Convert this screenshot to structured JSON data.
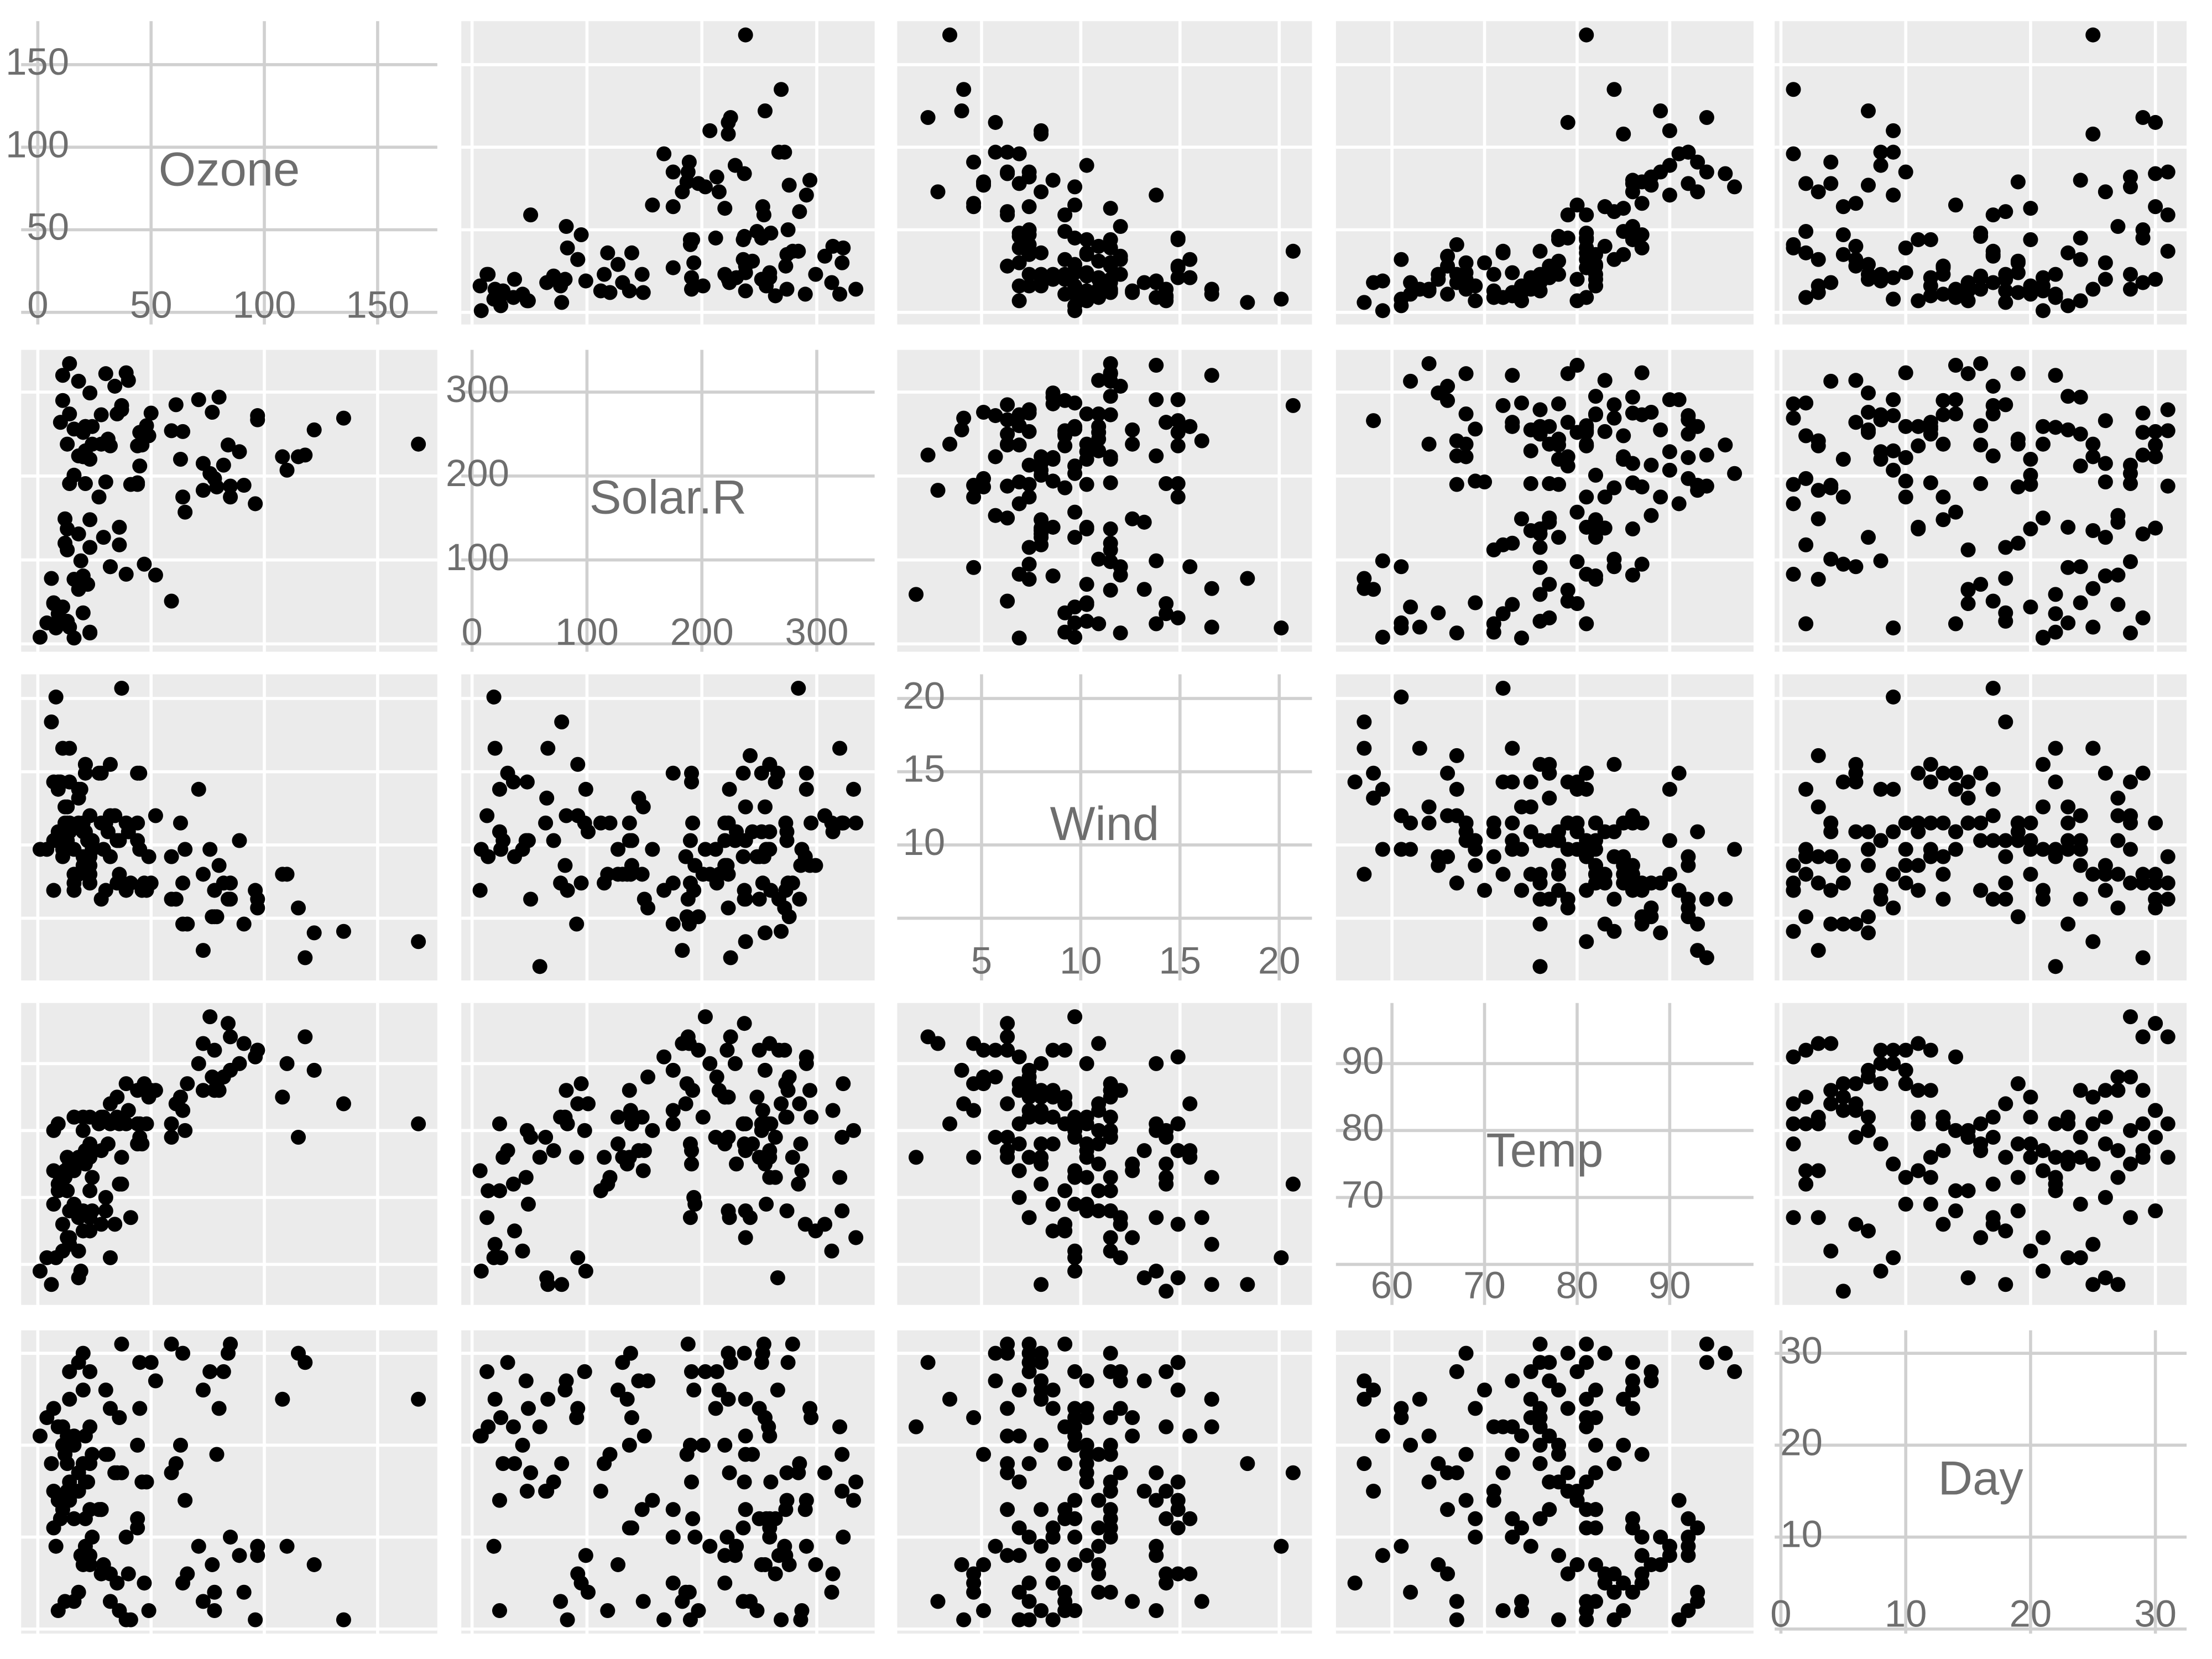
{
  "chart_data": {
    "type": "scatter-matrix",
    "color": "#000000",
    "variables": [
      {
        "name": "Ozone",
        "lim": [
          -7.35,
          176.35
        ],
        "ticks": [
          0,
          50,
          100,
          150
        ],
        "values": [
          41,
          36,
          12,
          18,
          null,
          28,
          23,
          19,
          8,
          null,
          7,
          16,
          11,
          14,
          18,
          14,
          34,
          6,
          30,
          11,
          1,
          11,
          4,
          32,
          null,
          null,
          null,
          23,
          45,
          115,
          37,
          null,
          null,
          null,
          null,
          null,
          null,
          29,
          null,
          71,
          39,
          null,
          null,
          23,
          null,
          null,
          21,
          37,
          20,
          12,
          13,
          null,
          null,
          null,
          null,
          null,
          null,
          null,
          null,
          null,
          null,
          135,
          49,
          32,
          null,
          64,
          40,
          77,
          97,
          97,
          85,
          null,
          10,
          27,
          null,
          7,
          48,
          35,
          61,
          79,
          63,
          16,
          null,
          null,
          80,
          108,
          20,
          52,
          82,
          50,
          64,
          59,
          39,
          9,
          16,
          78,
          35,
          66,
          122,
          89,
          110,
          null,
          null,
          44,
          28,
          65,
          null,
          22,
          59,
          23,
          31,
          44,
          21,
          9,
          null,
          45,
          168,
          73,
          null,
          76,
          118,
          84,
          85,
          96,
          78,
          73,
          91,
          47,
          32,
          20,
          23,
          21,
          24,
          44,
          21,
          28,
          9,
          13,
          46,
          18,
          13,
          24,
          16,
          13,
          23,
          36,
          7,
          14,
          30,
          null,
          14,
          18,
          20
        ]
      },
      {
        "name": "Solar.R",
        "lim": [
          -9.35,
          350.35
        ],
        "ticks": [
          0,
          100,
          200,
          300
        ],
        "values": [
          190,
          118,
          149,
          313,
          null,
          null,
          299,
          99,
          19,
          194,
          null,
          256,
          290,
          274,
          65,
          334,
          307,
          78,
          322,
          44,
          8,
          320,
          25,
          92,
          66,
          266,
          null,
          13,
          252,
          223,
          279,
          286,
          287,
          242,
          186,
          220,
          264,
          127,
          273,
          291,
          323,
          259,
          250,
          148,
          332,
          322,
          191,
          284,
          37,
          120,
          137,
          150,
          59,
          91,
          250,
          135,
          127,
          47,
          98,
          31,
          138,
          269,
          248,
          236,
          101,
          175,
          314,
          276,
          267,
          272,
          175,
          139,
          264,
          175,
          291,
          48,
          260,
          274,
          285,
          187,
          220,
          7,
          258,
          295,
          294,
          223,
          81,
          82,
          213,
          275,
          253,
          254,
          83,
          24,
          77,
          null,
          null,
          null,
          255,
          229,
          207,
          222,
          137,
          192,
          273,
          157,
          64,
          71,
          51,
          115,
          244,
          190,
          259,
          36,
          255,
          212,
          238,
          215,
          153,
          203,
          225,
          237,
          188,
          167,
          197,
          183,
          189,
          95,
          92,
          252,
          220,
          230,
          259,
          236,
          259,
          238,
          24,
          112,
          237,
          224,
          27,
          238,
          201,
          238,
          14,
          139,
          49,
          20,
          193,
          145,
          191,
          131,
          223
        ]
      },
      {
        "name": "Wind",
        "lim": [
          0.75,
          21.65
        ],
        "ticks": [
          5,
          10,
          15,
          20
        ],
        "values": [
          7.4,
          8.0,
          12.6,
          11.5,
          14.3,
          14.9,
          8.6,
          13.8,
          20.1,
          8.6,
          6.9,
          9.7,
          9.2,
          10.9,
          13.2,
          11.5,
          12.0,
          18.4,
          11.5,
          9.7,
          9.7,
          16.6,
          9.7,
          12.0,
          16.6,
          14.9,
          8.0,
          12.0,
          14.9,
          5.7,
          7.4,
          8.6,
          9.7,
          16.1,
          9.2,
          8.6,
          14.3,
          9.7,
          6.9,
          13.8,
          11.5,
          10.9,
          9.2,
          8.0,
          13.8,
          11.5,
          14.9,
          20.7,
          9.2,
          11.5,
          10.3,
          6.3,
          1.7,
          4.6,
          6.3,
          8.0,
          8.0,
          10.3,
          11.5,
          14.9,
          8.0,
          4.1,
          9.2,
          9.2,
          10.9,
          4.6,
          10.9,
          5.1,
          6.3,
          5.7,
          7.4,
          8.6,
          14.3,
          14.9,
          14.9,
          14.3,
          6.9,
          10.3,
          6.3,
          5.1,
          11.5,
          6.9,
          9.7,
          11.5,
          8.6,
          8.0,
          8.6,
          12.0,
          7.4,
          7.4,
          7.4,
          9.2,
          6.9,
          13.8,
          7.4,
          6.9,
          7.4,
          4.6,
          4.0,
          10.3,
          8.0,
          8.6,
          11.5,
          11.5,
          11.5,
          9.7,
          11.5,
          10.3,
          6.3,
          7.4,
          10.9,
          10.3,
          15.5,
          14.3,
          12.6,
          9.7,
          3.4,
          8.0,
          5.7,
          9.7,
          2.3,
          6.3,
          6.3,
          6.9,
          5.1,
          2.8,
          4.6,
          7.4,
          15.5,
          10.9,
          10.3,
          10.9,
          9.7,
          14.9,
          15.5,
          6.3,
          10.9,
          11.5,
          6.9,
          13.8,
          10.3,
          10.3,
          8.0,
          12.6,
          9.2,
          10.3,
          10.3,
          16.6,
          6.9,
          13.2,
          14.3,
          8.0,
          11.5
        ]
      },
      {
        "name": "Temp",
        "lim": [
          53.95,
          99.05
        ],
        "ticks": [
          60,
          70,
          80,
          90
        ],
        "values": [
          67,
          72,
          74,
          62,
          56,
          66,
          65,
          59,
          61,
          69,
          74,
          69,
          66,
          68,
          58,
          64,
          66,
          57,
          68,
          62,
          59,
          73,
          61,
          61,
          57,
          58,
          57,
          67,
          81,
          79,
          76,
          78,
          74,
          67,
          84,
          85,
          79,
          82,
          87,
          90,
          87,
          93,
          92,
          82,
          80,
          79,
          77,
          72,
          65,
          73,
          76,
          77,
          76,
          76,
          76,
          75,
          78,
          73,
          80,
          77,
          83,
          84,
          85,
          81,
          84,
          83,
          83,
          88,
          92,
          92,
          89,
          82,
          73,
          81,
          91,
          80,
          81,
          82,
          84,
          87,
          85,
          74,
          81,
          82,
          86,
          85,
          82,
          86,
          88,
          86,
          83,
          81,
          81,
          81,
          82,
          86,
          85,
          87,
          89,
          90,
          90,
          92,
          86,
          86,
          82,
          80,
          79,
          77,
          79,
          76,
          78,
          78,
          77,
          72,
          75,
          79,
          81,
          86,
          88,
          97,
          94,
          96,
          94,
          91,
          92,
          93,
          93,
          87,
          84,
          80,
          78,
          75,
          73,
          81,
          76,
          77,
          71,
          71,
          78,
          67,
          76,
          68,
          82,
          64,
          71,
          81,
          69,
          63,
          70,
          77,
          75,
          76,
          68
        ]
      },
      {
        "name": "Day",
        "lim": [
          -0.5,
          32.5
        ],
        "ticks": [
          0,
          10,
          20,
          30
        ],
        "values": [
          1,
          2,
          3,
          4,
          5,
          6,
          7,
          8,
          9,
          10,
          11,
          12,
          13,
          14,
          15,
          16,
          17,
          18,
          19,
          20,
          21,
          22,
          23,
          24,
          25,
          26,
          27,
          28,
          29,
          30,
          31,
          1,
          2,
          3,
          4,
          5,
          6,
          7,
          8,
          9,
          10,
          11,
          12,
          13,
          14,
          15,
          16,
          17,
          18,
          19,
          20,
          21,
          22,
          23,
          24,
          25,
          26,
          27,
          28,
          29,
          30,
          1,
          2,
          3,
          4,
          5,
          6,
          7,
          8,
          9,
          10,
          11,
          12,
          13,
          14,
          15,
          16,
          17,
          18,
          19,
          20,
          21,
          22,
          23,
          24,
          25,
          26,
          27,
          28,
          29,
          30,
          31,
          1,
          2,
          3,
          4,
          5,
          6,
          7,
          8,
          9,
          10,
          11,
          12,
          13,
          14,
          15,
          16,
          17,
          18,
          19,
          20,
          21,
          22,
          23,
          24,
          25,
          26,
          27,
          28,
          29,
          30,
          31,
          1,
          2,
          3,
          4,
          5,
          6,
          7,
          8,
          9,
          10,
          11,
          12,
          13,
          14,
          15,
          16,
          17,
          18,
          19,
          20,
          21,
          22,
          23,
          24,
          25,
          26,
          27,
          28,
          29,
          30
        ]
      }
    ]
  }
}
